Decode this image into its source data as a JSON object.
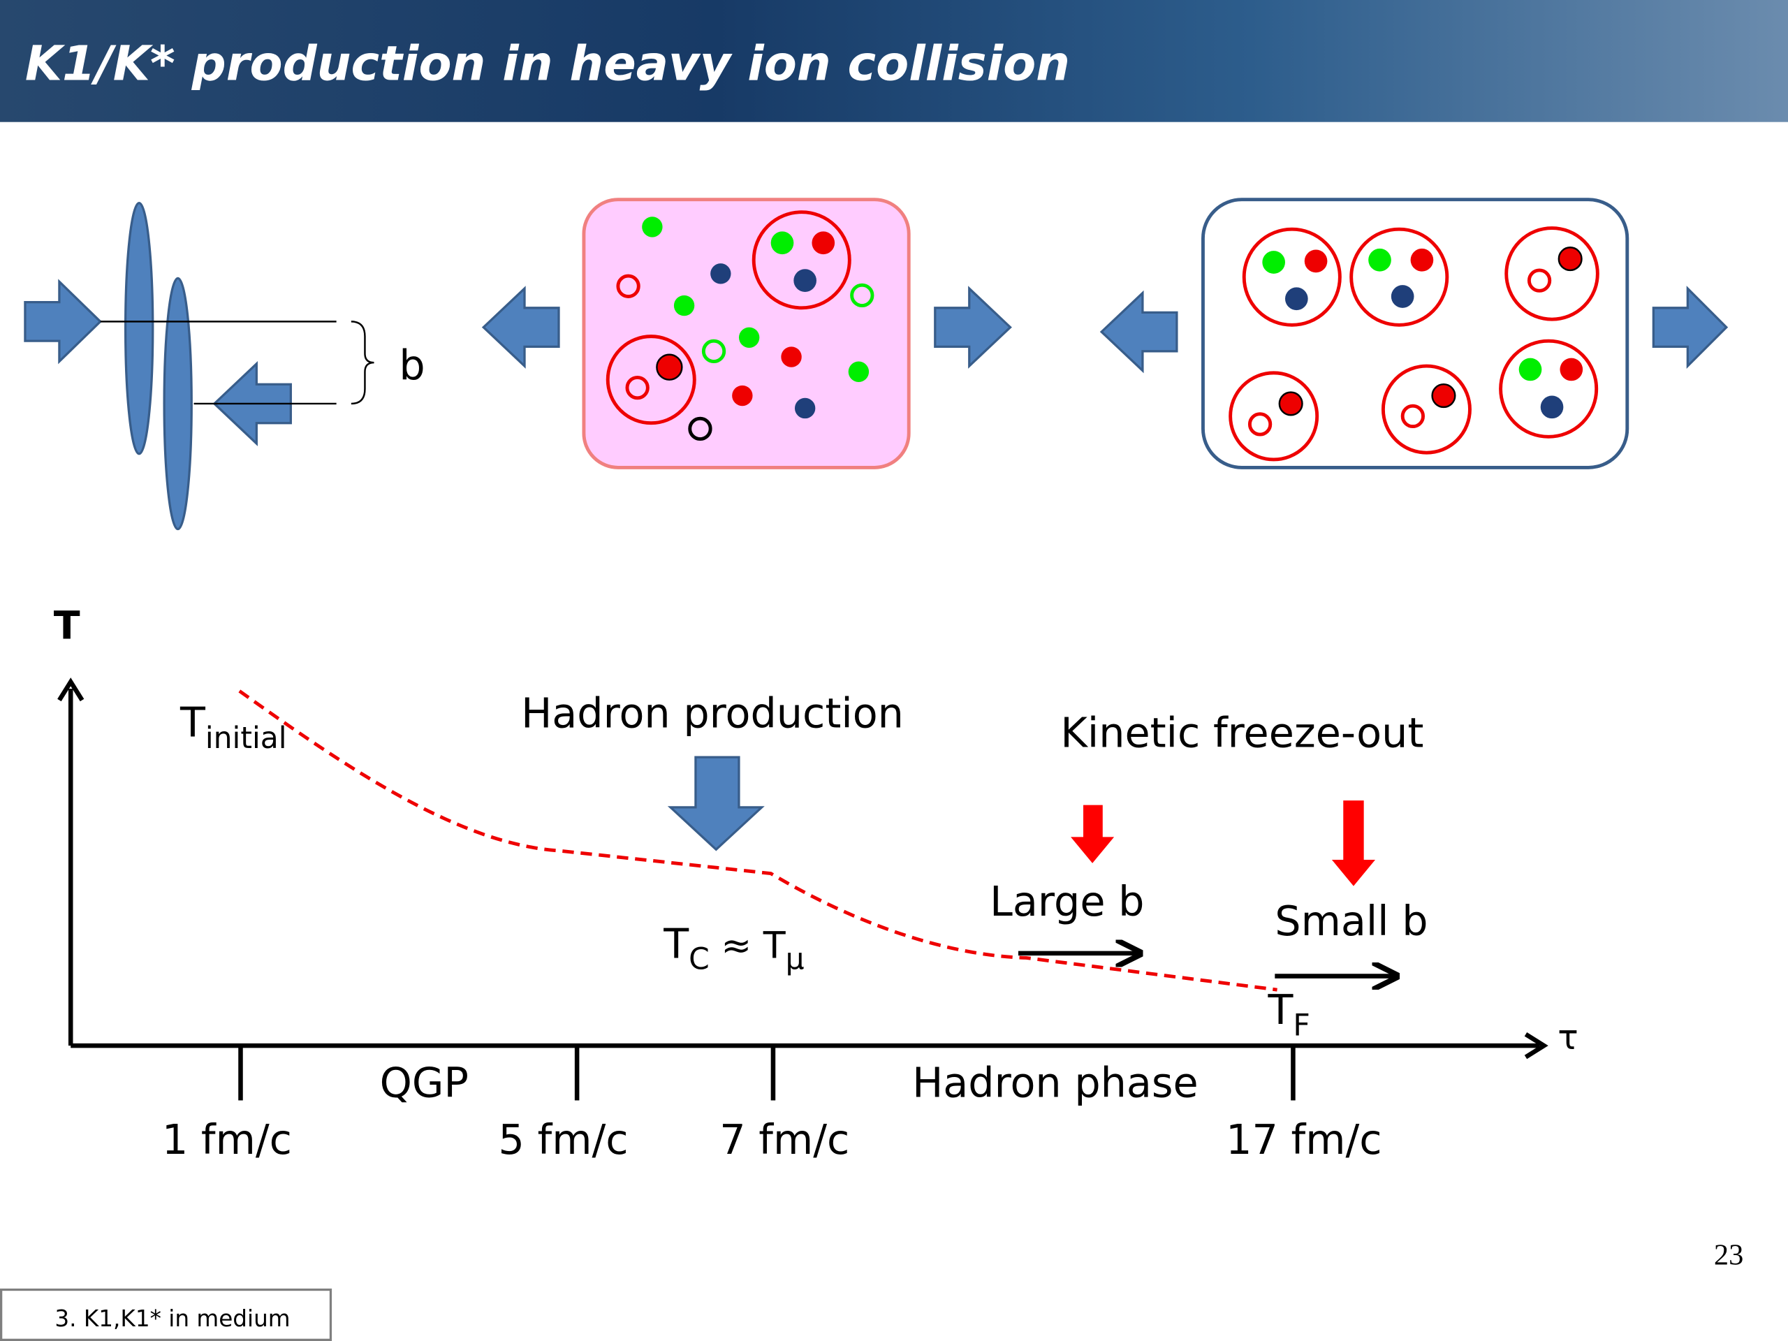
{
  "header": {
    "title": "K1/K* production in heavy ion collision"
  },
  "collision": {
    "impact_label": "b"
  },
  "plot": {
    "y_axis_label": "T",
    "x_axis_label": "τ",
    "t_initial": {
      "base": "T",
      "sub": "initial"
    },
    "hadron_production": "Hadron production",
    "kinetic_freeze_out": "Kinetic freeze-out",
    "large_b": "Large b",
    "small_b": "Small b",
    "t_c": {
      "base": "T",
      "sub": "C",
      "approx": " ≈ T",
      "sub2": "μ"
    },
    "t_f": {
      "base": "T",
      "sub": "F"
    },
    "phases": [
      "QGP",
      "Hadron phase"
    ],
    "ticks": [
      "1 fm/c",
      "5 fm/c",
      "7 fm/c",
      "17 fm/c"
    ]
  },
  "footer": {
    "page_number": "23",
    "section": "3. K1,K1* in medium"
  }
}
